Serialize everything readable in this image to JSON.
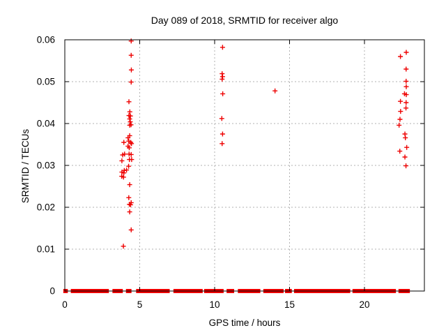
{
  "chart_data": {
    "type": "scatter",
    "title": "Day 089 of 2018, SRMTID for receiver algo",
    "xlabel": "GPS time / hours",
    "ylabel": "SRMTID / TECUs",
    "xlim": [
      0,
      24
    ],
    "ylim": [
      0,
      0.06
    ],
    "xticks": [
      0,
      5,
      10,
      15,
      20
    ],
    "xtick_labels": [
      "0",
      "5",
      "10",
      "15",
      "20"
    ],
    "yticks": [
      0,
      0.01,
      0.02,
      0.03,
      0.04,
      0.05,
      0.06
    ],
    "ytick_labels": [
      "0",
      "0.01",
      "0.02",
      "0.03",
      "0.04",
      "0.05",
      "0.06"
    ],
    "grid": true,
    "legend_position": "none",
    "marker": {
      "shape": "plus",
      "color": "#ee0000",
      "size": 7
    },
    "grid_color": "#b0b0b0",
    "frame_color": "#000000",
    "series": [
      {
        "name": "SRMTID",
        "points": [
          [
            4.43,
            0.0597
          ],
          [
            4.43,
            0.0563
          ],
          [
            4.44,
            0.0528
          ],
          [
            4.43,
            0.0499
          ],
          [
            4.28,
            0.0452
          ],
          [
            4.34,
            0.0428
          ],
          [
            4.28,
            0.0419
          ],
          [
            4.38,
            0.0418
          ],
          [
            4.33,
            0.0411
          ],
          [
            4.37,
            0.0404
          ],
          [
            4.42,
            0.0397
          ],
          [
            4.33,
            0.0396
          ],
          [
            4.33,
            0.0371
          ],
          [
            4.22,
            0.0366
          ],
          [
            4.27,
            0.0358
          ],
          [
            3.94,
            0.0355
          ],
          [
            4.4,
            0.0355
          ],
          [
            4.45,
            0.0352
          ],
          [
            4.22,
            0.0346
          ],
          [
            4.3,
            0.0342
          ],
          [
            3.99,
            0.0327
          ],
          [
            4.29,
            0.0327
          ],
          [
            4.43,
            0.0326
          ],
          [
            3.86,
            0.0325
          ],
          [
            4.31,
            0.0314
          ],
          [
            4.46,
            0.0314
          ],
          [
            3.81,
            0.0311
          ],
          [
            4.26,
            0.0298
          ],
          [
            4.12,
            0.0289
          ],
          [
            3.97,
            0.0288
          ],
          [
            3.81,
            0.0284
          ],
          [
            3.94,
            0.0282
          ],
          [
            3.8,
            0.0274
          ],
          [
            3.92,
            0.0272
          ],
          [
            4.33,
            0.0254
          ],
          [
            4.27,
            0.0223
          ],
          [
            4.43,
            0.0211
          ],
          [
            4.31,
            0.0207
          ],
          [
            4.39,
            0.0206
          ],
          [
            4.33,
            0.0189
          ],
          [
            4.43,
            0.0146
          ],
          [
            3.91,
            0.0107
          ],
          [
            10.53,
            0.0582
          ],
          [
            10.5,
            0.0519
          ],
          [
            10.53,
            0.0512
          ],
          [
            10.5,
            0.0506
          ],
          [
            10.54,
            0.0471
          ],
          [
            10.48,
            0.0412
          ],
          [
            10.53,
            0.0375
          ],
          [
            10.5,
            0.0352
          ],
          [
            14.03,
            0.0478
          ],
          [
            22.79,
            0.057
          ],
          [
            22.4,
            0.056
          ],
          [
            22.78,
            0.053
          ],
          [
            22.78,
            0.0501
          ],
          [
            22.79,
            0.0488
          ],
          [
            22.67,
            0.0471
          ],
          [
            22.79,
            0.0469
          ],
          [
            22.4,
            0.0453
          ],
          [
            22.78,
            0.045
          ],
          [
            22.77,
            0.0437
          ],
          [
            22.41,
            0.0429
          ],
          [
            22.37,
            0.041
          ],
          [
            22.31,
            0.0396
          ],
          [
            22.7,
            0.0375
          ],
          [
            22.73,
            0.0366
          ],
          [
            22.82,
            0.0343
          ],
          [
            22.36,
            0.0334
          ],
          [
            22.7,
            0.032
          ],
          [
            22.77,
            0.0299
          ]
        ]
      }
    ],
    "zero_band_segments": [
      [
        -0.1,
        0.2
      ],
      [
        0.4,
        2.94
      ],
      [
        3.18,
        3.87
      ],
      [
        4.08,
        4.45
      ],
      [
        4.76,
        7.0
      ],
      [
        7.25,
        9.2
      ],
      [
        9.3,
        10.6
      ],
      [
        10.8,
        11.3
      ],
      [
        11.55,
        13.05
      ],
      [
        13.25,
        14.6
      ],
      [
        14.7,
        15.15
      ],
      [
        15.3,
        19.05
      ],
      [
        19.2,
        22.1
      ],
      [
        22.27,
        23.03
      ]
    ]
  }
}
